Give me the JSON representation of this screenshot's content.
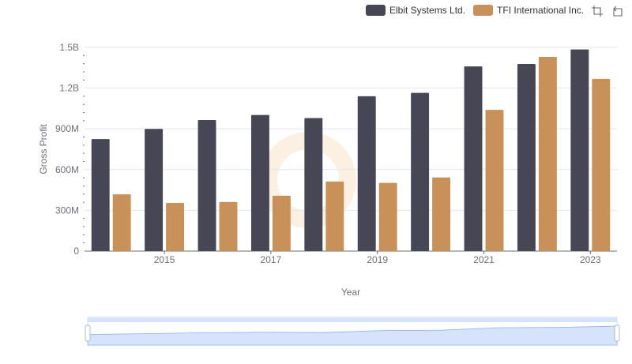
{
  "toolbox": {
    "zoom_icon": "zoom-box-icon",
    "restore_icon": "restore-icon"
  },
  "colors": {
    "series": [
      "#464655",
      "#c8915a"
    ],
    "grid": "#e0e6f1",
    "axis": "#6e7079",
    "watermark": "#f7e3c9",
    "zoom_fill": "#d6e4fb"
  },
  "datazoom": {
    "start": 0,
    "end": 100
  },
  "chart_data": {
    "type": "bar",
    "title": "",
    "xlabel": "Year",
    "ylabel": "Gross Profit",
    "categories": [
      "2014",
      "2015",
      "2016",
      "2017",
      "2018",
      "2019",
      "2020",
      "2021",
      "2022",
      "2023"
    ],
    "x_tick_labels": [
      "2015",
      "2017",
      "2019",
      "2021",
      "2023"
    ],
    "y_tick_labels": [
      "0",
      "300M",
      "600M",
      "900M",
      "1.2B",
      "1.5B"
    ],
    "y_ticks": [
      0,
      300000000,
      600000000,
      900000000,
      1200000000,
      1500000000
    ],
    "ylim": [
      0,
      1500000000
    ],
    "grid": true,
    "legend_position": "top-right",
    "series": [
      {
        "name": "Elbit Systems Ltd.",
        "values": [
          825000000,
          900000000,
          965000000,
          1002000000,
          980000000,
          1140000000,
          1165000000,
          1360000000,
          1378000000,
          1485000000
        ]
      },
      {
        "name": "TFI International Inc.",
        "values": [
          418000000,
          355000000,
          362000000,
          408000000,
          512000000,
          502000000,
          542000000,
          1040000000,
          1430000000,
          1268000000
        ]
      }
    ]
  }
}
